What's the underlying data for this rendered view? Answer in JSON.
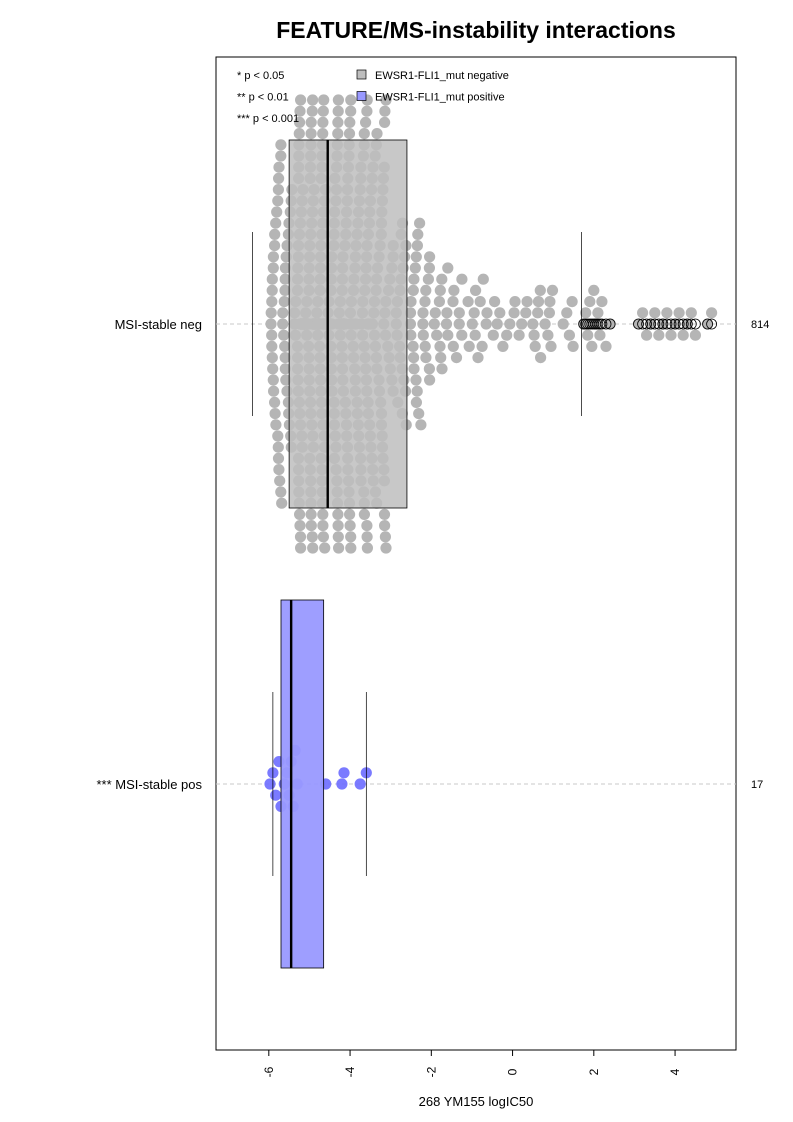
{
  "chart_data": {
    "type": "boxplot-beeswarm",
    "title": "FEATURE/MS-instability interactions",
    "xlabel": "268 YM155 logIC50",
    "xlim": [
      -7.3,
      5.5
    ],
    "x_ticks": [
      -6,
      -4,
      -2,
      0,
      2,
      4
    ],
    "orientation": "horizontal",
    "significance_legend": [
      "* p < 0.05",
      "** p < 0.01",
      "*** p < 0.001"
    ],
    "legend": [
      {
        "label": "EWSR1-FLI1_mut negative",
        "color": "#bebebe"
      },
      {
        "label": "EWSR1-FLI1_mut positive",
        "color": "#9999ff"
      }
    ],
    "groups": [
      {
        "label": "MSI-stable neg",
        "n_label": "814",
        "color": "#bebebe",
        "point_color": "#b5b5b5",
        "stats": {
          "whisker_low": -6.4,
          "q1": -5.5,
          "median": -4.55,
          "q3": -2.6,
          "whisker_high": 1.7
        },
        "outliers": [
          1.75,
          1.8,
          1.85,
          1.9,
          1.95,
          2.0,
          2.05,
          2.1,
          2.15,
          2.2,
          2.3,
          2.4,
          3.1,
          3.2,
          3.3,
          3.4,
          3.5,
          3.6,
          3.7,
          3.8,
          3.9,
          4.0,
          4.1,
          4.2,
          4.3,
          4.4,
          4.5,
          4.8,
          4.9
        ]
      },
      {
        "label": "*** MSI-stable pos",
        "n_label": "17",
        "color": "#9999ff",
        "point_color": "#6b6bff",
        "stats": {
          "whisker_low": -5.9,
          "q1": -5.7,
          "median": -5.45,
          "q3": -4.65,
          "whisker_high": -3.6
        },
        "values": [
          -5.97,
          -5.9,
          -5.83,
          -5.75,
          -5.7,
          -5.62,
          -5.55,
          -5.5,
          -5.45,
          -5.4,
          -5.35,
          -5.3,
          -4.6,
          -4.2,
          -4.15,
          -3.75,
          -3.6
        ]
      }
    ]
  }
}
